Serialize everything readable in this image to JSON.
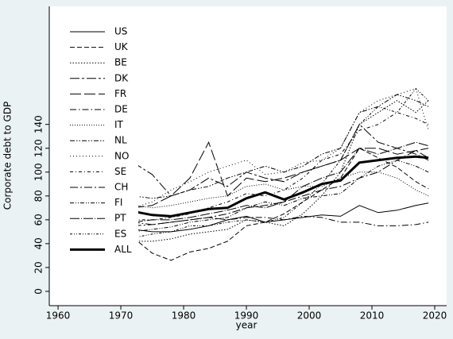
{
  "chart_data": {
    "type": "line",
    "y_label": "Corporate debt to GDP",
    "x_label": "year",
    "x": [
      1972,
      1975,
      1978,
      1981,
      1984,
      1987,
      1990,
      1993,
      1996,
      1999,
      2002,
      2005,
      2008,
      2011,
      2014,
      2017,
      2019
    ],
    "xlim": [
      1958.6,
      2021.9
    ],
    "xticks": [
      1960,
      1970,
      1980,
      1990,
      2000,
      2010,
      2020
    ],
    "ylim": [
      -12,
      239
    ],
    "yticks": [
      0,
      20,
      40,
      60,
      80,
      100,
      120,
      140
    ],
    "legend": "top-left",
    "series": [
      {
        "name": "US",
        "color": "#000000",
        "dash": "none",
        "width": 1,
        "values": [
          52,
          50,
          50,
          52,
          55,
          60,
          63,
          58,
          60,
          62,
          64,
          63,
          72,
          66,
          68,
          72,
          74
        ]
      },
      {
        "name": "UK",
        "color": "#000000",
        "dash": "6 3",
        "width": 1,
        "values": [
          45,
          32,
          26,
          33,
          36,
          42,
          55,
          58,
          65,
          75,
          85,
          95,
          120,
          112,
          104,
          92,
          86
        ]
      },
      {
        "name": "BE",
        "color": "#000000",
        "dash": "1.5 2",
        "width": 1,
        "values": [
          42,
          42,
          44,
          48,
          50,
          52,
          60,
          58,
          55,
          65,
          80,
          100,
          140,
          150,
          160,
          150,
          160
        ]
      },
      {
        "name": "DK",
        "color": "#000000",
        "dash": "12 3 3 3",
        "width": 1,
        "values": [
          108,
          98,
          80,
          85,
          95,
          88,
          100,
          95,
          92,
          100,
          105,
          110,
          140,
          125,
          120,
          115,
          110
        ]
      },
      {
        "name": "FR",
        "color": "#000000",
        "dash": "14 4",
        "width": 1,
        "values": [
          70,
          72,
          80,
          95,
          125,
          80,
          95,
          92,
          95,
          100,
          105,
          110,
          120,
          120,
          115,
          118,
          120
        ]
      },
      {
        "name": "DE",
        "color": "#000000",
        "dash": "8 3 1.5 3",
        "width": 1,
        "values": [
          58,
          56,
          58,
          60,
          62,
          60,
          62,
          62,
          60,
          63,
          62,
          58,
          58,
          55,
          55,
          56,
          58
        ]
      },
      {
        "name": "IT",
        "color": "#000000",
        "dash": "1 2",
        "width": 1,
        "values": [
          72,
          70,
          72,
          75,
          78,
          80,
          88,
          90,
          85,
          88,
          88,
          95,
          100,
          100,
          95,
          85,
          80
        ]
      },
      {
        "name": "NL",
        "color": "#000000",
        "dash": "6 2 1.5 2 1.5 2",
        "width": 1,
        "values": [
          80,
          78,
          80,
          85,
          88,
          95,
          100,
          105,
          100,
          105,
          115,
          120,
          150,
          155,
          165,
          160,
          155
        ]
      },
      {
        "name": "NO",
        "color": "#000000",
        "dash": "1 3",
        "width": 1,
        "values": [
          70,
          75,
          85,
          92,
          100,
          105,
          110,
          98,
          100,
          108,
          110,
          120,
          150,
          160,
          165,
          170,
          135
        ]
      },
      {
        "name": "SE",
        "color": "#000000",
        "dash": "4 3 1 3",
        "width": 1,
        "values": [
          60,
          60,
          62,
          65,
          70,
          75,
          82,
          80,
          85,
          95,
          110,
          115,
          135,
          140,
          150,
          145,
          140
        ]
      },
      {
        "name": "CH",
        "color": "#000000",
        "dash": "10 3 2 3",
        "width": 1,
        "values": [
          55,
          56,
          58,
          60,
          62,
          65,
          70,
          72,
          75,
          80,
          85,
          88,
          95,
          100,
          110,
          118,
          112
        ]
      },
      {
        "name": "FI",
        "color": "#000000",
        "dash": "5 2 1 2 1 2",
        "width": 1,
        "values": [
          50,
          52,
          54,
          58,
          60,
          62,
          70,
          75,
          72,
          78,
          80,
          82,
          95,
          105,
          110,
          105,
          100
        ]
      },
      {
        "name": "PT",
        "color": "#000000",
        "dash": "12 2 1 2",
        "width": 1,
        "values": [
          58,
          60,
          60,
          62,
          65,
          68,
          72,
          70,
          75,
          88,
          95,
          100,
          120,
          115,
          120,
          125,
          122
        ]
      },
      {
        "name": "ES",
        "color": "#000000",
        "dash": "3 2 1 2 1 2",
        "width": 1,
        "values": [
          45,
          48,
          50,
          55,
          55,
          58,
          60,
          58,
          62,
          75,
          90,
          110,
          140,
          155,
          150,
          170,
          160
        ]
      },
      {
        "name": "ALL",
        "color": "#000000",
        "dash": "none",
        "width": 3,
        "values": [
          67,
          64,
          63,
          66,
          69,
          70,
          78,
          83,
          77,
          83,
          90,
          93,
          108,
          110,
          112,
          113,
          112
        ]
      }
    ]
  }
}
